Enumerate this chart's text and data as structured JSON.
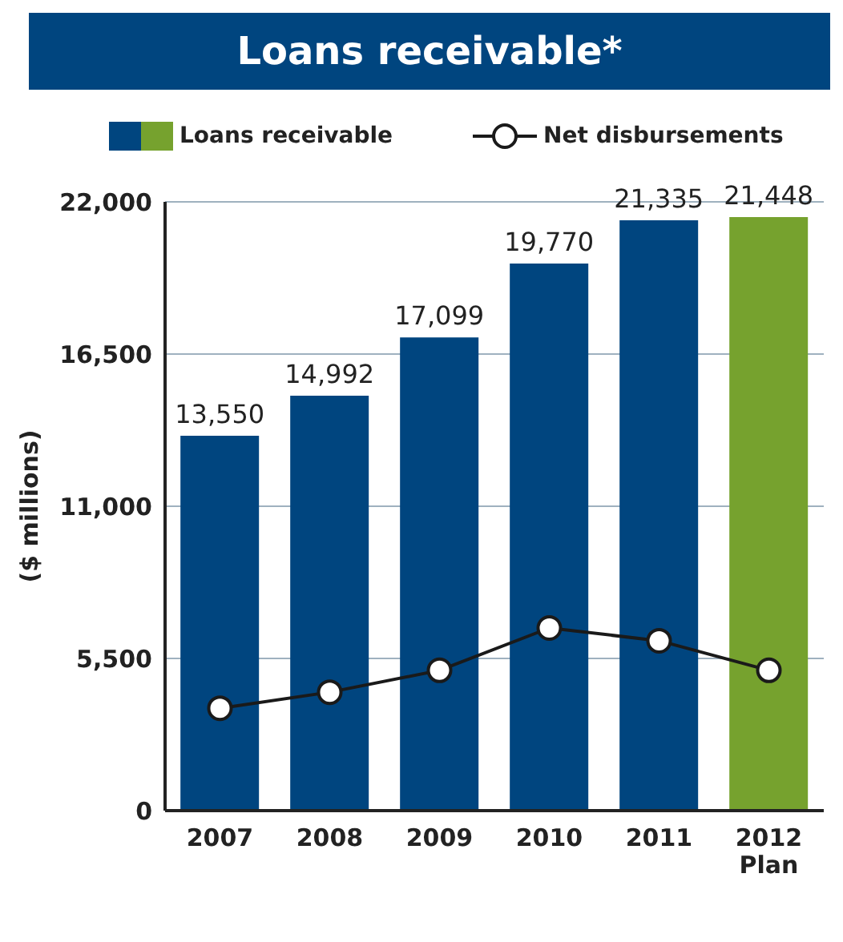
{
  "chart_data": {
    "type": "bar",
    "title": "Loans receivable*",
    "ylabel": "($ millions)",
    "categories": [
      "2007",
      "2008",
      "2009",
      "2010",
      "2011",
      "2012 Plan"
    ],
    "series": [
      {
        "name": "Loans receivable",
        "colors": [
          "#00457f",
          "#00457f",
          "#00457f",
          "#00457f",
          "#00457f",
          "#76a22e"
        ],
        "values": [
          13550,
          14992,
          17099,
          19770,
          21335,
          21448
        ],
        "value_labels": [
          "13,550",
          "14,992",
          "17,099",
          "19,770",
          "21,335",
          "21,448"
        ]
      },
      {
        "name": "Net disbursements",
        "type": "line",
        "color": "#1a1a1a",
        "marker": "circle",
        "values": [
          3700,
          4280,
          5070,
          6600,
          6140,
          5070
        ]
      }
    ],
    "ylim": [
      0,
      22000
    ],
    "yticks": [
      {
        "value": 0,
        "label": "0"
      },
      {
        "value": 5500,
        "label": "5,500"
      },
      {
        "value": 11000,
        "label": "11,000"
      },
      {
        "value": 16500,
        "label": "16,500"
      },
      {
        "value": 22000,
        "label": "22,000"
      }
    ],
    "grid": "y",
    "legend": "top"
  }
}
